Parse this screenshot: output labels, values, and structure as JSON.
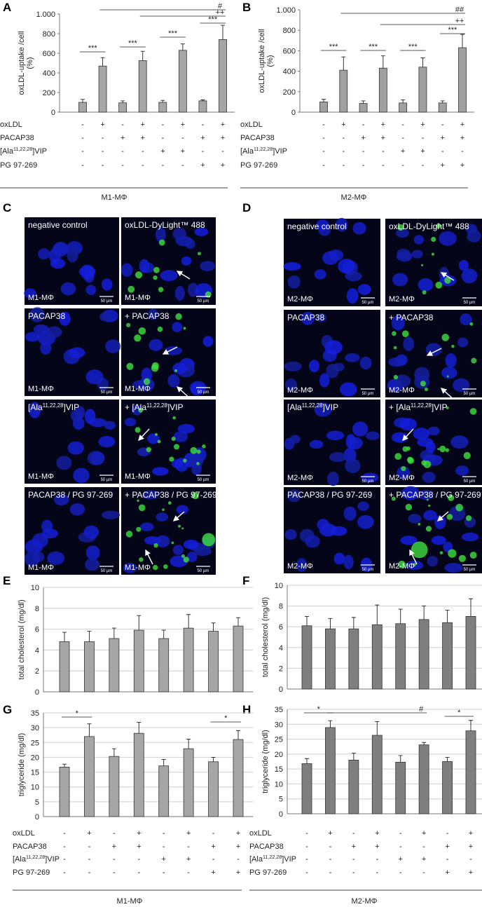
{
  "panel_labels": [
    "A",
    "B",
    "C",
    "D",
    "E",
    "F",
    "G",
    "H"
  ],
  "chart_data": [
    {
      "type": "bar",
      "ylabel": [
        "oxLDL-uptake /cell",
        "(%)"
      ],
      "categories": [
        null,
        null,
        null,
        null,
        null,
        null,
        null,
        null
      ],
      "values": [
        100,
        470,
        95,
        525,
        100,
        630,
        115,
        740
      ],
      "errors": [
        30,
        85,
        20,
        95,
        20,
        65,
        10,
        145
      ],
      "color": "#a6a6a6",
      "grid": false,
      "ylim": [
        0,
        1000
      ],
      "yticks": [
        0,
        200,
        400,
        600,
        800,
        {
          "value": 1000,
          "label": "1.000"
        }
      ],
      "annotations": [
        "***",
        "***",
        "***",
        "***",
        "++",
        "#"
      ]
    },
    {
      "type": "bar",
      "ylabel": [
        "oxLDL-uptake /cell",
        "(%)"
      ],
      "categories": [
        null,
        null,
        null,
        null,
        null,
        null,
        null,
        null
      ],
      "values": [
        100,
        410,
        85,
        430,
        90,
        440,
        90,
        630
      ],
      "errors": [
        25,
        130,
        25,
        120,
        30,
        90,
        20,
        130
      ],
      "color": "#a0a0a0",
      "grid": false,
      "ylim": [
        0,
        1000
      ],
      "yticks": [
        0,
        200,
        400,
        600,
        800,
        {
          "value": 1000,
          "label": "1.000"
        }
      ],
      "annotations": [
        "***",
        "***",
        "***",
        "***",
        "++",
        "##"
      ]
    },
    {
      "type": "bar",
      "ylabel": [
        "total cholesterol (mg/dl)"
      ],
      "categories": [
        null,
        null,
        null,
        null,
        null,
        null,
        null,
        null
      ],
      "values": [
        4.8,
        4.8,
        5.1,
        5.9,
        5.1,
        6.1,
        5.8,
        6.3
      ],
      "errors": [
        0.9,
        1.0,
        1.0,
        1.4,
        0.8,
        1.3,
        0.8,
        0.8
      ],
      "color": "#a6a6a6",
      "grid": true,
      "ylim": [
        0,
        10
      ],
      "yticks": [
        0,
        2,
        4,
        6,
        8,
        10
      ],
      "annotations": []
    },
    {
      "type": "bar",
      "ylabel": [
        "total cholesterol (mg/dl)"
      ],
      "categories": [
        null,
        null,
        null,
        null,
        null,
        null,
        null,
        null
      ],
      "values": [
        6.1,
        5.8,
        5.8,
        6.2,
        6.3,
        6.7,
        6.4,
        7.0
      ],
      "errors": [
        0.9,
        1.0,
        1.1,
        1.9,
        1.4,
        1.3,
        1.2,
        1.7
      ],
      "color": "#7f7f7f",
      "grid": true,
      "ylim": [
        0,
        10
      ],
      "yticks": [
        0,
        2,
        4,
        6,
        8,
        10
      ],
      "annotations": []
    },
    {
      "type": "bar",
      "ylabel": [
        "triglyceride (mg/dl)"
      ],
      "categories": [
        null,
        null,
        null,
        null,
        null,
        null,
        null,
        null
      ],
      "values": [
        16.7,
        27,
        20.3,
        28.1,
        17.1,
        22.9,
        18.5,
        26
      ],
      "errors": [
        1,
        4.3,
        2.6,
        3.7,
        2.2,
        3.2,
        1.5,
        3
      ],
      "color": "#a6a6a6",
      "grid": true,
      "ylim": [
        0,
        35
      ],
      "yticks": [
        0,
        5,
        10,
        15,
        20,
        25,
        30,
        35
      ],
      "annotations": [
        "*",
        "*"
      ]
    },
    {
      "type": "bar",
      "ylabel": [
        "triglyceride (mg/dl)"
      ],
      "categories": [
        null,
        null,
        null,
        null,
        null,
        null,
        null,
        null
      ],
      "values": [
        16.8,
        28.9,
        18,
        26.3,
        17.3,
        23.1,
        17.5,
        27.8
      ],
      "errors": [
        1.7,
        2.3,
        2.3,
        4.6,
        2.2,
        0.8,
        1.4,
        3.5
      ],
      "color": "#7f7f7f",
      "grid": true,
      "ylim": [
        0,
        35
      ],
      "yticks": [
        0,
        5,
        10,
        15,
        20,
        25,
        30,
        35
      ],
      "annotations": [
        "*",
        "#",
        "*"
      ]
    }
  ],
  "conditions": [
    {
      "group": "M1-MΦ",
      "rows": [
        {
          "label": "oxLDL",
          "signs": [
            "-",
            "+",
            "-",
            "+",
            "-",
            "+",
            "-",
            "+"
          ]
        },
        {
          "label": "PACAP38",
          "signs": [
            "-",
            "-",
            "+",
            "+",
            "-",
            "-",
            "+",
            "+"
          ]
        },
        {
          "label": {
            "text": "[Ala",
            "sup": "11,22,28",
            "tail": "]VIP"
          },
          "signs": [
            "-",
            "-",
            "-",
            "-",
            "+",
            "+",
            "-",
            "-"
          ]
        },
        {
          "label": "PG 97-269",
          "signs": [
            "-",
            "-",
            "-",
            "-",
            "-",
            "-",
            "+",
            "+"
          ]
        }
      ]
    },
    {
      "group": "M2-MΦ",
      "rows": [
        {
          "label": "oxLDL",
          "signs": [
            "-",
            "+",
            "-",
            "+",
            "-",
            "+",
            "-",
            "+"
          ]
        },
        {
          "label": "PACAP38",
          "signs": [
            "-",
            "-",
            "+",
            "+",
            "-",
            "-",
            "+",
            "+"
          ]
        },
        {
          "label": {
            "text": "[Ala",
            "sup": "11,22,28",
            "tail": "]VIP"
          },
          "signs": [
            "-",
            "-",
            "-",
            "-",
            "+",
            "+",
            "-",
            "-"
          ]
        },
        {
          "label": "PG 97-269",
          "signs": [
            "-",
            "-",
            "-",
            "-",
            "-",
            "-",
            "+",
            "+"
          ]
        }
      ]
    },
    {
      "group": "M1-MΦ",
      "rows": [
        {
          "label": "oxLDL",
          "signs": [
            "-",
            "+",
            "-",
            "+",
            "-",
            "+",
            "-",
            "+"
          ]
        },
        {
          "label": "PACAP38",
          "signs": [
            "-",
            "-",
            "+",
            "+",
            "-",
            "-",
            "+",
            "+"
          ]
        },
        {
          "label": {
            "text": "[Ala",
            "sup": "11,22,28",
            "tail": "]VIP"
          },
          "signs": [
            "-",
            "-",
            "-",
            "-",
            "+",
            "+",
            "-",
            "-"
          ]
        },
        {
          "label": "PG 97-269",
          "signs": [
            "-",
            "-",
            "-",
            "-",
            "-",
            "-",
            "+",
            "+"
          ]
        }
      ]
    },
    {
      "group": "M2-MΦ",
      "rows": [
        {
          "label": "oxLDL",
          "signs": [
            "-",
            "+",
            "-",
            "+",
            "-",
            "+",
            "-",
            "+"
          ]
        },
        {
          "label": "PACAP38",
          "signs": [
            "-",
            "-",
            "+",
            "+",
            "-",
            "-",
            "+",
            "+"
          ]
        },
        {
          "label": {
            "text": "[Ala",
            "sup": "11,22,28",
            "tail": "]VIP"
          },
          "signs": [
            "-",
            "-",
            "-",
            "-",
            "+",
            "+",
            "-",
            "-"
          ]
        },
        {
          "label": "PG 97-269",
          "signs": [
            "-",
            "-",
            "-",
            "-",
            "-",
            "-",
            "+",
            "+"
          ]
        }
      ]
    }
  ],
  "micrographs": [
    {
      "panels": [
        {
          "label": "negative control",
          "cell": "M1-MΦ",
          "scale": "50 µm"
        },
        {
          "label": "oxLDL-DyLight™ 488",
          "cell": "M1-MΦ",
          "scale": "50 µm"
        },
        {
          "label": "PACAP38",
          "cell": "M1-MΦ",
          "scale": "50 µm"
        },
        {
          "label": "+ PACAP38",
          "cell": "M1-MΦ",
          "scale": "50 µm"
        },
        {
          "label": {
            "text": "[Ala",
            "sup": "11,22,28",
            "tail": "]VIP"
          },
          "cell": "M1-MΦ",
          "scale": "50 µm"
        },
        {
          "label": {
            "text": "+ [Ala",
            "sup": "11,22,28",
            "tail": "]VIP"
          },
          "cell": "M1-MΦ",
          "scale": "50 µm"
        },
        {
          "label": "PACAP38 / PG 97-269",
          "cell": "M1-MΦ",
          "scale": "50 µm"
        },
        {
          "label": "+ PACAP38 / PG 97-269",
          "cell": "M1-MΦ",
          "scale": "50 µm"
        }
      ]
    },
    {
      "panels": [
        {
          "label": "negative control",
          "cell": "M2-MΦ",
          "scale": "50 µm"
        },
        {
          "label": "oxLDL-DyLight™ 488",
          "cell": "M2-MΦ",
          "scale": "50 µm"
        },
        {
          "label": "PACAP38",
          "cell": "M2-MΦ",
          "scale": "50 µm"
        },
        {
          "label": "+ PACAP38",
          "cell": "M2-MΦ",
          "scale": "50 µm"
        },
        {
          "label": {
            "text": "[Ala",
            "sup": "11,22,28",
            "tail": "]VIP"
          },
          "cell": "M2-MΦ",
          "scale": "50 µm"
        },
        {
          "label": {
            "text": "+ [Ala",
            "sup": "11,22,28",
            "tail": "]VIP"
          },
          "cell": "M2-MΦ",
          "scale": "50 µm"
        },
        {
          "label": "PACAP38 / PG 97-269",
          "cell": "M2-MΦ",
          "scale": "50 µm"
        },
        {
          "label": "+ PACAP38 / PG 97-269",
          "cell": "M2-MΦ",
          "scale": "50 µm"
        }
      ]
    }
  ]
}
